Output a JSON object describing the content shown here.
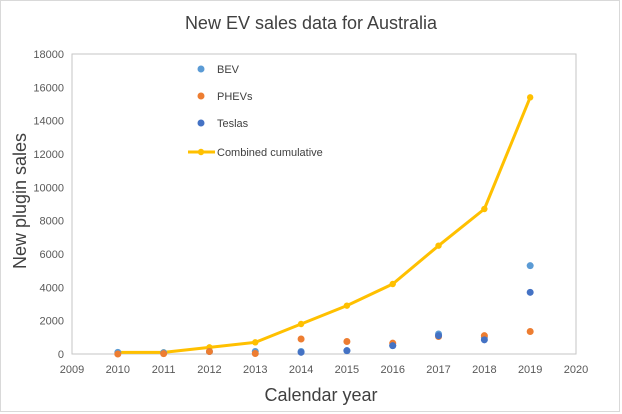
{
  "chart_data": {
    "type": "scatter",
    "title": "New EV sales data for Australia",
    "xlabel": "Calendar year",
    "ylabel": "New plugin sales",
    "xlim": [
      2009,
      2020
    ],
    "ylim": [
      0,
      18000
    ],
    "x_ticks": [
      "2009",
      "2010",
      "2011",
      "2012",
      "2013",
      "2014",
      "2015",
      "2016",
      "2017",
      "2018",
      "2019",
      "2020"
    ],
    "y_ticks": [
      "0",
      "2000",
      "4000",
      "6000",
      "8000",
      "10000",
      "12000",
      "14000",
      "16000",
      "18000"
    ],
    "grid": false,
    "legend_position": "top-center inside",
    "series": [
      {
        "name": "BEV",
        "kind": "scatter",
        "color": "#5b9bd5",
        "x": [
          2010,
          2011,
          2012,
          2013,
          2014,
          2015,
          2016,
          2017,
          2018,
          2019
        ],
        "y": [
          100,
          80,
          150,
          150,
          150,
          200,
          500,
          1200,
          1000,
          5300
        ]
      },
      {
        "name": "PHEVs",
        "kind": "scatter",
        "color": "#ed7d31",
        "x": [
          2010,
          2011,
          2012,
          2013,
          2014,
          2015,
          2016,
          2017,
          2018,
          2019
        ],
        "y": [
          0,
          20,
          150,
          30,
          900,
          750,
          650,
          1050,
          1100,
          1350
        ]
      },
      {
        "name": "Teslas",
        "kind": "scatter",
        "color": "#4472c4",
        "x": [
          2014,
          2015,
          2016,
          2017,
          2018,
          2019
        ],
        "y": [
          100,
          200,
          500,
          1100,
          850,
          3700
        ]
      },
      {
        "name": "Combined cumulative",
        "kind": "line",
        "color": "#ffc000",
        "x": [
          2010,
          2011,
          2012,
          2013,
          2014,
          2015,
          2016,
          2017,
          2018,
          2019
        ],
        "y": [
          100,
          100,
          400,
          700,
          1800,
          2900,
          4200,
          6500,
          8700,
          15400
        ]
      }
    ]
  }
}
